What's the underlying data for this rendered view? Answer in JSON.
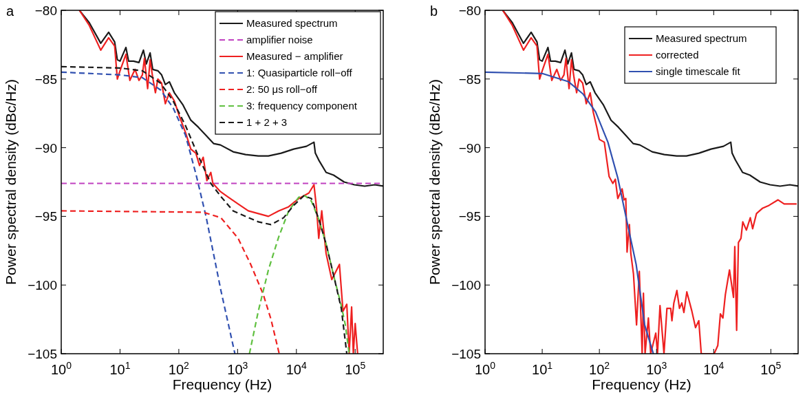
{
  "chart_data": [
    {
      "type": "line",
      "title": "a",
      "xlabel": "Frequency (Hz)",
      "ylabel": "Power spectral density (dBc/Hz)",
      "log": "x",
      "legend": "top right",
      "xlim": [
        1,
        300000
      ],
      "ylim": [
        -105,
        -80
      ],
      "xticks": [
        {
          "value": 1,
          "label": "10$^{0}$"
        },
        {
          "value": 10,
          "label": "10$^{1}$"
        },
        {
          "value": 100,
          "label": "10$^{2}$"
        },
        {
          "value": 1000,
          "label": "10$^{3}$"
        },
        {
          "value": 10000,
          "label": "10$^{4}$"
        },
        {
          "value": 100000,
          "label": "10$^{5}$"
        }
      ],
      "yticks": [
        -105,
        -100,
        -95,
        -90,
        -85,
        -80
      ],
      "series": [
        {
          "name": "Measured spectrum",
          "color": "#1a1a1a",
          "line_style": "solid",
          "x": [
            2.04,
            3,
            4.7,
            6.4,
            8.1,
            9,
            10,
            12.6,
            14,
            17,
            21,
            25,
            28,
            32.5,
            36,
            44,
            51,
            59,
            69,
            84,
            118,
            160,
            214,
            290,
            390,
            510,
            840,
            1370,
            2250,
            3340,
            5500,
            9000,
            14800,
            19900,
            21000,
            24000,
            32000,
            43000,
            65000,
            97000,
            145000,
            215000,
            300000
          ],
          "values": [
            -80,
            -80.9,
            -82.4,
            -81.6,
            -82.3,
            -83.6,
            -83.7,
            -82.7,
            -83.7,
            -83.7,
            -83.8,
            -82.9,
            -83.9,
            -83.1,
            -84.3,
            -84.4,
            -84.7,
            -85.4,
            -85.2,
            -86,
            -86.9,
            -88,
            -88.5,
            -89.1,
            -89.7,
            -89.8,
            -90.3,
            -90.5,
            -90.6,
            -90.6,
            -90.4,
            -90.1,
            -89.9,
            -89.6,
            -90.4,
            -90.9,
            -91.8,
            -92,
            -92.5,
            -92.7,
            -92.8,
            -92.7,
            -92.8
          ]
        },
        {
          "name": "amplifier noise",
          "color": "#c040c0",
          "line_style": "dashed",
          "x": [
            1,
            300000
          ],
          "values": [
            -92.6,
            -92.6
          ]
        },
        {
          "name": "Measured − amplifier",
          "color": "#ee2020",
          "line_style": "solid",
          "x": [
            2.04,
            3,
            4.7,
            6.4,
            8.1,
            9,
            10,
            12.6,
            14.7,
            18,
            21,
            24,
            26,
            29.5,
            32.5,
            36,
            40,
            44,
            51,
            59,
            69,
            84,
            102,
            130,
            160,
            195,
            225,
            260,
            300,
            350,
            380,
            510,
            690,
            1020,
            1520,
            2250,
            3340,
            5000,
            7400,
            11000,
            16300,
            19900,
            22000,
            24000,
            27000,
            32000,
            40000,
            54000,
            62000,
            72000,
            79000,
            87000,
            93000,
            100000,
            110000
          ],
          "values": [
            -80,
            -81.1,
            -82.9,
            -82,
            -82.6,
            -85,
            -84.4,
            -83.2,
            -85.1,
            -84.3,
            -85.1,
            -84.7,
            -83.5,
            -85.7,
            -83.6,
            -84.9,
            -86,
            -85,
            -85.3,
            -86.8,
            -86,
            -86.6,
            -87.7,
            -88.9,
            -90.1,
            -90.4,
            -91.3,
            -90.7,
            -92.4,
            -91.8,
            -92.6,
            -93.2,
            -93.6,
            -94.1,
            -94.6,
            -94.8,
            -95,
            -94.6,
            -94.3,
            -93.7,
            -93.3,
            -92.7,
            -94.4,
            -96.6,
            -94.6,
            -97.7,
            -99.6,
            -98.5,
            -101.9,
            -101.4,
            -105,
            -101.6,
            -105,
            -102.8,
            -105
          ]
        },
        {
          "name": "1: Quasiparticle roll−off",
          "color": "#3050b0",
          "line_style": "dashed",
          "x": [
            1,
            10,
            24,
            49,
            80,
            130,
            195,
            290,
            520,
            900
          ],
          "values": [
            -84.5,
            -84.7,
            -84.9,
            -85.8,
            -87.1,
            -89.1,
            -91.9,
            -95,
            -100.4,
            -105
          ]
        },
        {
          "name": "2: 50 μs roll−off",
          "color": "#ee2020",
          "line_style": "dashed",
          "x": [
            1,
            260,
            520,
            1020,
            1670,
            2740,
            3700,
            5100
          ],
          "values": [
            -94.6,
            -94.7,
            -95.1,
            -96.6,
            -98.5,
            -100.7,
            -102.5,
            -105
          ]
        },
        {
          "name": "3: frequency component",
          "color": "#60c040",
          "line_style": "dashed",
          "x": [
            1590,
            2250,
            3340,
            5000,
            7400,
            11000,
            14000,
            18000,
            24000,
            32000,
            43000,
            58000,
            68000,
            79000
          ],
          "values": [
            -105,
            -101.9,
            -98.9,
            -96.5,
            -94.6,
            -93.6,
            -93.5,
            -93.9,
            -95.2,
            -97,
            -99.3,
            -101.5,
            -102.9,
            -105
          ]
        },
        {
          "name": "1 + 2 + 3",
          "color": "#1a1a1a",
          "line_style": "dashed",
          "x": [
            1,
            10,
            24,
            49,
            80,
            130,
            214,
            350,
            530,
            840,
            1370,
            2250,
            3700,
            6070,
            9000,
            13400,
            18000,
            24000,
            32000,
            43000,
            58000,
            72000
          ],
          "values": [
            -84.1,
            -84.2,
            -84.4,
            -85.3,
            -86.6,
            -88.4,
            -90.6,
            -92.6,
            -93.6,
            -94.6,
            -95,
            -95.4,
            -95.6,
            -95.1,
            -94.2,
            -93.5,
            -93.7,
            -95.2,
            -97,
            -99.3,
            -101.7,
            -105
          ]
        }
      ]
    },
    {
      "type": "line",
      "title": "b",
      "xlabel": "Frequency (Hz)",
      "ylabel": "Power spectral density (dBc/Hz)",
      "log": "x",
      "legend": "top right",
      "xlim": [
        1,
        300000
      ],
      "ylim": [
        -105,
        -80
      ],
      "xticks": [
        {
          "value": 1,
          "label": "10$^{0}$"
        },
        {
          "value": 10,
          "label": "10$^{1}$"
        },
        {
          "value": 100,
          "label": "10$^{2}$"
        },
        {
          "value": 1000,
          "label": "10$^{3}$"
        },
        {
          "value": 10000,
          "label": "10$^{4}$"
        },
        {
          "value": 100000,
          "label": "10$^{5}$"
        }
      ],
      "yticks": [
        -105,
        -100,
        -95,
        -90,
        -85,
        -80
      ],
      "series": [
        {
          "name": "Measured spectrum",
          "color": "#1a1a1a",
          "line_style": "solid",
          "x": [
            2.04,
            3,
            4.7,
            6.4,
            8.1,
            9,
            10,
            12.6,
            14,
            17,
            21,
            25,
            28,
            32.5,
            36,
            44,
            51,
            59,
            69,
            84,
            118,
            160,
            214,
            290,
            390,
            510,
            840,
            1370,
            2250,
            3340,
            5500,
            9000,
            14800,
            19900,
            21000,
            24000,
            32000,
            43000,
            65000,
            97000,
            145000,
            215000,
            300000
          ],
          "values": [
            -80,
            -80.9,
            -82.4,
            -81.6,
            -82.3,
            -83.6,
            -83.7,
            -82.7,
            -83.7,
            -83.7,
            -83.8,
            -82.9,
            -83.9,
            -83.1,
            -84.3,
            -84.4,
            -84.7,
            -85.4,
            -85.2,
            -86,
            -86.9,
            -88,
            -88.5,
            -89.1,
            -89.7,
            -89.8,
            -90.3,
            -90.5,
            -90.6,
            -90.6,
            -90.4,
            -90.1,
            -89.9,
            -89.6,
            -90.4,
            -90.9,
            -91.8,
            -92,
            -92.5,
            -92.7,
            -92.8,
            -92.7,
            -92.8
          ]
        },
        {
          "name": "corrected",
          "color": "#ee2020",
          "line_style": "solid",
          "x": [
            2.04,
            3,
            4.7,
            6.4,
            8.1,
            9,
            10,
            12.6,
            14.7,
            18,
            21,
            24,
            26,
            29.5,
            32.5,
            36,
            40,
            44,
            51,
            59,
            69,
            78,
            90,
            100,
            122,
            148,
            172,
            190,
            210,
            250,
            270,
            290,
            305,
            335,
            355,
            395,
            447,
            500,
            560,
            590,
            630,
            720,
            790,
            970,
            1040,
            1150,
            1350,
            1520,
            1770,
            1860,
            2010,
            2270,
            2520,
            2770,
            3010,
            3390,
            4150,
            4810,
            5490,
            6060,
            10200,
            11800,
            13100,
            14500,
            16000,
            18900,
            22200,
            23400,
            25200,
            27100,
            30000,
            32300,
            37300,
            43700,
            48000,
            56000,
            72000,
            93000,
            133000,
            171000,
            283000
          ],
          "values": [
            -80,
            -81.1,
            -82.9,
            -82,
            -82.6,
            -85,
            -84.4,
            -83.2,
            -85.1,
            -84.3,
            -85.1,
            -84.7,
            -83.5,
            -85.7,
            -83.6,
            -84.9,
            -86,
            -85,
            -85.3,
            -86.8,
            -86,
            -87.4,
            -88.5,
            -89.4,
            -89.6,
            -92.1,
            -92.6,
            -92.3,
            -93.7,
            -93,
            -93.8,
            -93.7,
            -97.6,
            -95.6,
            -97.7,
            -99.2,
            -102.9,
            -99,
            -105,
            -100.6,
            -105,
            -102.4,
            -105,
            -103.5,
            -105,
            -101.5,
            -105,
            -101.7,
            -101.7,
            -102.6,
            -101.3,
            -100.4,
            -101.7,
            -101.3,
            -102,
            -100.5,
            -101.9,
            -103.1,
            -102.6,
            -105,
            -105,
            -104.4,
            -102.1,
            -102.4,
            -100.7,
            -98.9,
            -100.9,
            -97.2,
            -103.3,
            -96.9,
            -96.6,
            -95.4,
            -96,
            -95.1,
            -95.9,
            -94.8,
            -94.4,
            -94.2,
            -93.8,
            -94.1,
            -94.1
          ]
        },
        {
          "name": "single timescale fit",
          "color": "#3050b0",
          "line_style": "solid",
          "x": [
            1,
            10,
            29,
            52,
            86,
            141,
            210,
            312,
            440,
            620,
            880
          ],
          "values": [
            -84.5,
            -84.6,
            -85.2,
            -86.1,
            -87.4,
            -89.6,
            -92.2,
            -95.6,
            -98.5,
            -102.9,
            -105
          ]
        }
      ]
    }
  ]
}
